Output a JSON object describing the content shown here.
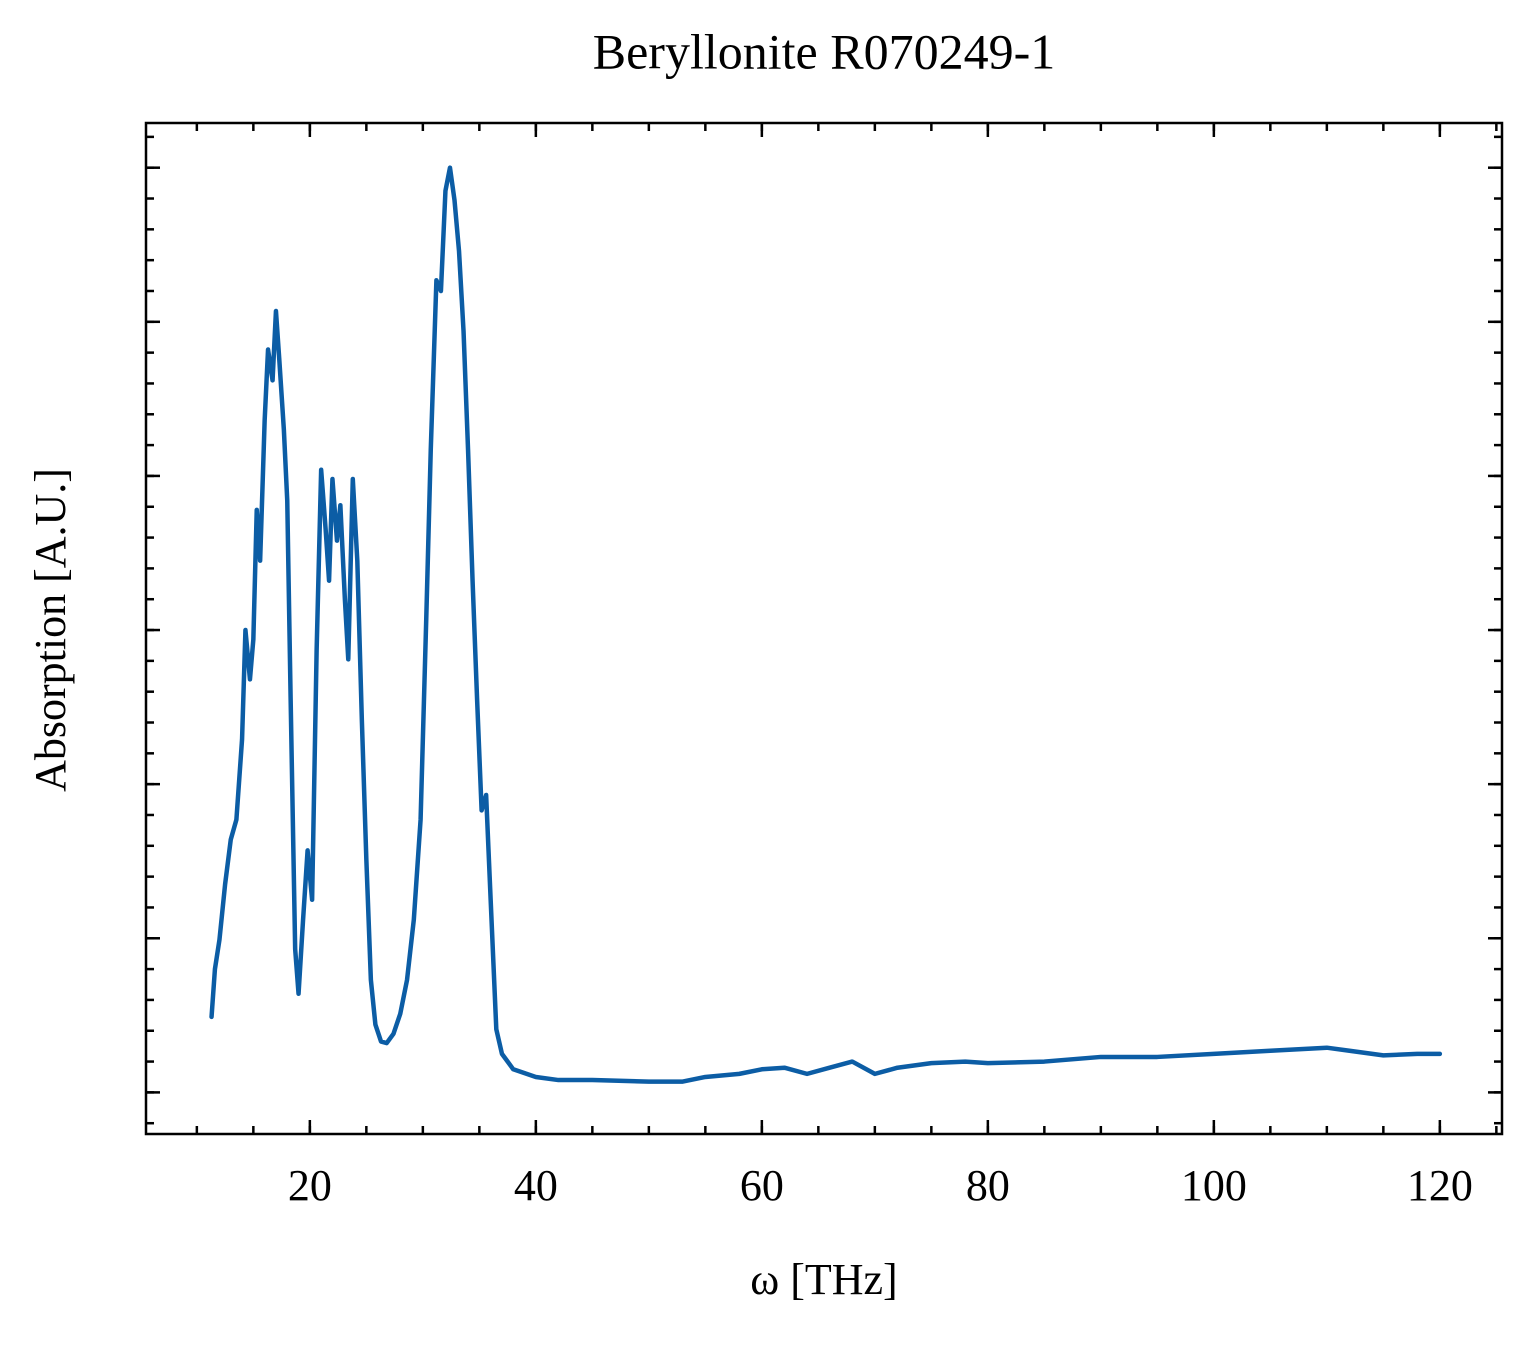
{
  "chart_data": {
    "type": "line",
    "title": "Beryllonite R070249-1",
    "x_label": "ω [THz]",
    "y_label": "Absorption [A.U.]",
    "xlim": [
      5.5,
      125.5
    ],
    "xticks": [
      20,
      40,
      60,
      80,
      100,
      120
    ],
    "ylim": [
      -0.27,
      6.29
    ],
    "yticks": [
      0,
      1,
      2,
      3,
      4,
      5,
      6
    ],
    "ytick_labels_shown": false,
    "grid": false,
    "series": [
      {
        "name": "Beryllonite R070249-1",
        "color": "#0c5da5",
        "x": [
          11.3,
          11.6,
          12,
          12.5,
          13,
          13.5,
          14,
          14.3,
          14.7,
          15,
          15.3,
          15.6,
          16,
          16.3,
          16.7,
          17,
          17.3,
          17.7,
          18,
          18.3,
          18.7,
          19,
          19.4,
          19.8,
          20.2,
          20.6,
          21,
          21.4,
          21.7,
          22,
          22.4,
          22.7,
          23.1,
          23.4,
          23.8,
          24.2,
          24.6,
          25,
          25.4,
          25.8,
          26.3,
          26.8,
          27.4,
          28,
          28.6,
          29.2,
          29.8,
          30.3,
          30.7,
          31.2,
          31.6,
          32,
          32.4,
          32.8,
          33.2,
          33.6,
          34,
          34.4,
          34.8,
          35.2,
          35.6,
          36,
          36.5,
          37,
          38,
          40,
          42,
          45,
          50,
          53,
          55,
          58,
          60,
          62,
          64,
          66,
          68,
          70,
          72,
          75,
          78,
          80,
          85,
          90,
          95,
          100,
          105,
          110,
          112,
          115,
          118,
          120
        ],
        "values": [
          0.49,
          0.8,
          0.99,
          1.35,
          1.64,
          1.77,
          2.29,
          3.0,
          2.68,
          2.94,
          3.78,
          3.45,
          4.36,
          4.82,
          4.62,
          5.07,
          4.75,
          4.3,
          3.84,
          2.55,
          0.93,
          0.64,
          1.12,
          1.57,
          1.25,
          2.87,
          4.04,
          3.65,
          3.32,
          3.98,
          3.58,
          3.81,
          3.2,
          2.81,
          3.98,
          3.45,
          2.42,
          1.51,
          0.73,
          0.44,
          0.33,
          0.32,
          0.38,
          0.51,
          0.73,
          1.12,
          1.77,
          3.07,
          4.17,
          5.27,
          5.2,
          5.85,
          6.0,
          5.79,
          5.46,
          4.94,
          4.17,
          3.32,
          2.55,
          1.83,
          1.93,
          1.25,
          0.41,
          0.25,
          0.15,
          0.1,
          0.08,
          0.08,
          0.07,
          0.07,
          0.1,
          0.12,
          0.15,
          0.16,
          0.12,
          0.16,
          0.2,
          0.12,
          0.16,
          0.19,
          0.2,
          0.19,
          0.2,
          0.23,
          0.23,
          0.25,
          0.27,
          0.29,
          0.27,
          0.24,
          0.25,
          0.25
        ]
      }
    ]
  }
}
